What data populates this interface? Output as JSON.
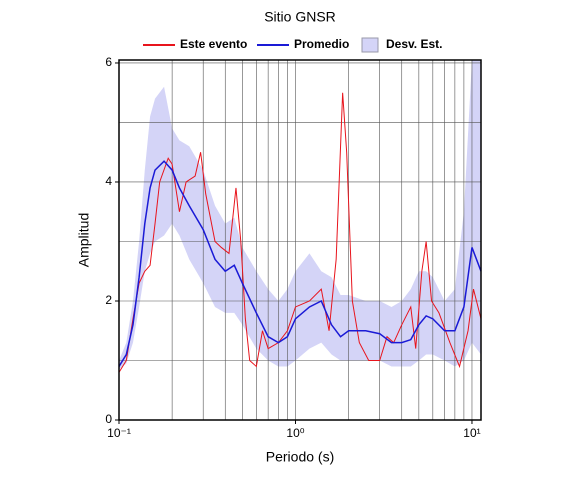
{
  "chart_data": {
    "type": "line",
    "title": "Sitio GNSR",
    "xlabel": "Periodo (s)",
    "ylabel": "Amplitud",
    "xscale": "log",
    "xlim": [
      0.1,
      11.25
    ],
    "ylim": [
      0,
      6.05
    ],
    "xticks": [
      {
        "value": 0.1,
        "label": "10⁻¹"
      },
      {
        "value": 1,
        "label": "10⁰"
      },
      {
        "value": 10,
        "label": "10¹"
      }
    ],
    "yticks": [
      0,
      2,
      4,
      6
    ],
    "x_gridlines": [
      0.2,
      0.3,
      0.4,
      0.5,
      0.6,
      0.7,
      0.8,
      0.9,
      1,
      2,
      3,
      4,
      5,
      6,
      7,
      8,
      9,
      10
    ],
    "y_gridlines": [
      1,
      2,
      3,
      4,
      5,
      6
    ],
    "series": [
      {
        "name": "Este evento",
        "color": "#e8141c",
        "x": [
          0.1,
          0.11,
          0.12,
          0.13,
          0.14,
          0.15,
          0.16,
          0.17,
          0.19,
          0.2,
          0.22,
          0.24,
          0.27,
          0.29,
          0.31,
          0.35,
          0.38,
          0.42,
          0.46,
          0.49,
          0.52,
          0.55,
          0.6,
          0.65,
          0.7,
          0.8,
          0.9,
          1.0,
          1.2,
          1.4,
          1.55,
          1.7,
          1.85,
          1.95,
          2.1,
          2.3,
          2.6,
          3.0,
          3.3,
          3.6,
          4.0,
          4.5,
          4.8,
          5.2,
          5.5,
          5.9,
          6.5,
          7.5,
          8.5,
          9.5,
          10.2,
          11.25
        ],
        "values": [
          0.8,
          1.0,
          1.7,
          2.3,
          2.5,
          2.6,
          3.3,
          4.0,
          4.4,
          4.3,
          3.5,
          4.0,
          4.1,
          4.5,
          3.8,
          3.0,
          2.9,
          2.8,
          3.9,
          3.0,
          1.7,
          1.0,
          0.9,
          1.5,
          1.2,
          1.3,
          1.5,
          1.9,
          2.0,
          2.2,
          1.5,
          2.7,
          5.5,
          4.5,
          2.0,
          1.3,
          1.0,
          1.0,
          1.4,
          1.3,
          1.6,
          1.9,
          1.2,
          2.5,
          3.0,
          2.0,
          1.8,
          1.3,
          0.9,
          1.5,
          2.2,
          1.7
        ]
      },
      {
        "name": "Promedio",
        "color": "#1a1ad6",
        "x": [
          0.1,
          0.11,
          0.12,
          0.13,
          0.14,
          0.15,
          0.16,
          0.18,
          0.2,
          0.22,
          0.25,
          0.3,
          0.35,
          0.4,
          0.45,
          0.5,
          0.6,
          0.7,
          0.8,
          0.9,
          1.0,
          1.2,
          1.4,
          1.6,
          1.8,
          2.0,
          2.5,
          3,
          3.5,
          4,
          4.5,
          5,
          5.5,
          6,
          7,
          8,
          9,
          10,
          11.25
        ],
        "values": [
          0.9,
          1.1,
          1.6,
          2.4,
          3.3,
          3.9,
          4.2,
          4.35,
          4.2,
          3.9,
          3.6,
          3.2,
          2.7,
          2.5,
          2.6,
          2.3,
          1.8,
          1.4,
          1.3,
          1.4,
          1.7,
          1.9,
          2.0,
          1.6,
          1.4,
          1.5,
          1.5,
          1.45,
          1.3,
          1.3,
          1.35,
          1.6,
          1.75,
          1.7,
          1.5,
          1.5,
          1.9,
          2.9,
          2.5
        ]
      }
    ],
    "band": {
      "name": "Desv. Est.",
      "color": "#d4d4f7",
      "x": [
        0.1,
        0.11,
        0.12,
        0.13,
        0.14,
        0.15,
        0.16,
        0.18,
        0.2,
        0.22,
        0.25,
        0.3,
        0.35,
        0.4,
        0.45,
        0.5,
        0.6,
        0.7,
        0.8,
        0.9,
        1.0,
        1.2,
        1.4,
        1.6,
        1.8,
        2.0,
        2.5,
        3,
        3.5,
        4,
        4.5,
        5,
        5.5,
        6,
        7,
        8,
        9,
        10,
        11.25
      ],
      "lower": [
        0.85,
        0.95,
        1.3,
        1.9,
        2.5,
        2.8,
        3.0,
        3.1,
        3.3,
        3.1,
        2.7,
        2.3,
        1.9,
        1.8,
        1.8,
        1.6,
        1.2,
        1.0,
        0.9,
        0.9,
        1.0,
        1.2,
        1.3,
        1.1,
        1.0,
        1.0,
        1.0,
        1.0,
        0.9,
        0.9,
        0.9,
        1.0,
        1.1,
        1.1,
        1.0,
        0.9,
        1.0,
        1.3,
        1.1
      ],
      "upper": [
        1.0,
        1.3,
        2.0,
        3.0,
        4.2,
        5.1,
        5.4,
        5.6,
        4.9,
        4.7,
        4.6,
        4.2,
        3.6,
        3.3,
        3.4,
        2.9,
        2.5,
        2.2,
        2.0,
        2.2,
        2.5,
        2.8,
        2.5,
        2.4,
        2.1,
        2.1,
        2.0,
        2.0,
        1.9,
        2.0,
        2.2,
        2.5,
        2.5,
        2.4,
        2.0,
        2.2,
        3.5,
        6.05,
        6.05
      ]
    }
  }
}
